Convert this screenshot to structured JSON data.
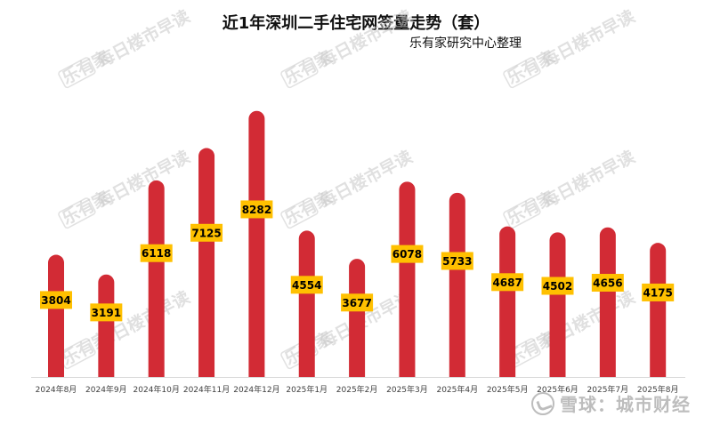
{
  "colors": {
    "bar": "#d22b35",
    "label_bg": "#ffc000",
    "label_text": "#000000"
  },
  "title": "近1年深圳二手住宅网签量走势（套）",
  "subtitle": "乐有家研究中心整理",
  "watermark": {
    "logo_text": "乐有家",
    "text": "每日楼市早读"
  },
  "footer_watermark": {
    "icon": "snowball-icon",
    "text": "雪球：城市财经"
  },
  "chart_data": {
    "type": "bar",
    "categories": [
      "2024年8月",
      "2024年9月",
      "2024年10月",
      "2024年11月",
      "2024年12月",
      "2025年1月",
      "2025年2月",
      "2025年3月",
      "2025年4月",
      "2025年5月",
      "2025年6月",
      "2025年7月",
      "2025年8月"
    ],
    "values": [
      3804,
      3191,
      6118,
      7125,
      8282,
      4554,
      3677,
      6078,
      5733,
      4687,
      4502,
      4656,
      4175
    ],
    "ylim": [
      0,
      8800
    ],
    "grid": false,
    "legend": "none"
  }
}
